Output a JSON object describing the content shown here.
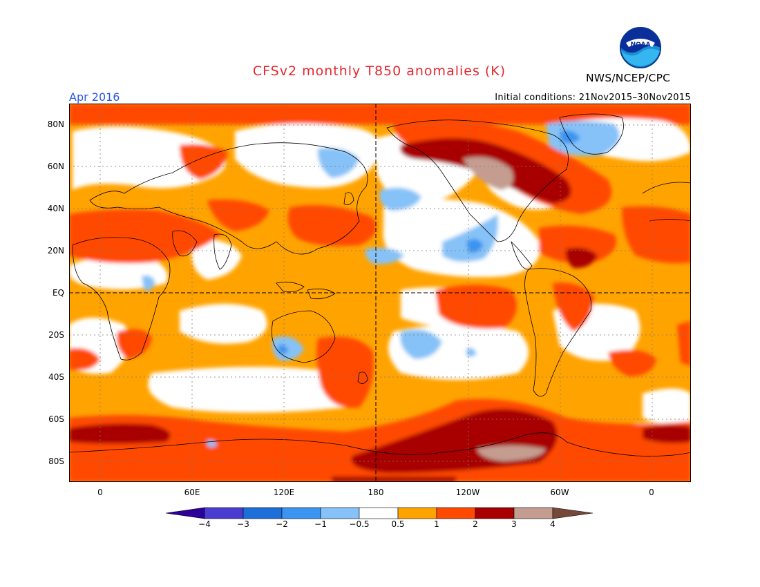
{
  "header": {
    "title": "CFSv2 monthly T850 anomalies (K)",
    "valid_month": "Apr 2016",
    "initial_conditions": "Initial conditions: 21Nov2015–30Nov2015",
    "organization": "NWS/NCEP/CPC",
    "logo_text": "NOAA"
  },
  "map": {
    "projection": "cylindrical equidistant",
    "field": "850 hPa temperature anomaly",
    "lat_labels": [
      "80N",
      "60N",
      "40N",
      "20N",
      "EQ",
      "20S",
      "40S",
      "60S",
      "80S"
    ],
    "lon_labels": [
      "0",
      "60E",
      "120E",
      "180",
      "120W",
      "60W",
      "0"
    ],
    "reference_lines": [
      "equator",
      "dateline"
    ]
  },
  "colorbar": {
    "levels": [
      "−4",
      "−3",
      "−2",
      "−1",
      "−0.5",
      "0.5",
      "1",
      "2",
      "3",
      "4"
    ],
    "colors": [
      "#2d0099",
      "#4b3cd1",
      "#1e6ed9",
      "#3b94f0",
      "#86c2f7",
      "#ffffff",
      "#ffa300",
      "#ff4a00",
      "#a80000",
      "#c49d90",
      "#75483a"
    ]
  }
}
